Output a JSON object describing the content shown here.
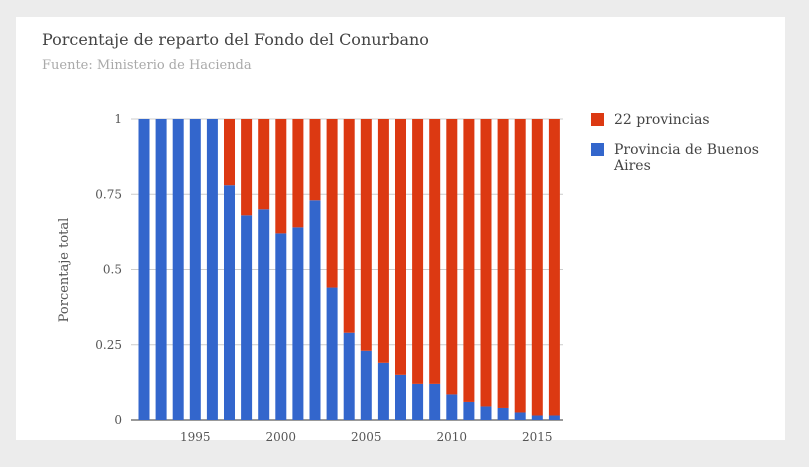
{
  "chart_data": {
    "type": "bar",
    "stacked": true,
    "title": "Porcentaje de reparto del Fondo del Conurbano",
    "subtitle": "Fuente: Ministerio de Hacienda",
    "xlabel": "",
    "ylabel": "Porcentaje total",
    "ylim": [
      0,
      1
    ],
    "yticks": [
      "0",
      "0.25",
      "0.5",
      "0.75",
      "1"
    ],
    "xticks": [
      "1995",
      "2000",
      "2005",
      "2010",
      "2015"
    ],
    "x": [
      1992,
      1993,
      1994,
      1995,
      1996,
      1997,
      1998,
      1999,
      2000,
      2001,
      2002,
      2003,
      2004,
      2005,
      2006,
      2007,
      2008,
      2009,
      2010,
      2011,
      2012,
      2013,
      2014,
      2015,
      2016
    ],
    "series": [
      {
        "name": "Provincia de Buenos Aires",
        "color": "#3366cc",
        "values": [
          1,
          1,
          1,
          1,
          1,
          0.78,
          0.68,
          0.7,
          0.62,
          0.64,
          0.73,
          0.44,
          0.29,
          0.23,
          0.19,
          0.15,
          0.12,
          0.12,
          0.085,
          0.06,
          0.045,
          0.04,
          0.025,
          0.015,
          0.015
        ]
      },
      {
        "name": "22 provincias",
        "color": "#dc3912",
        "values": [
          0,
          0,
          0,
          0,
          0,
          0.22,
          0.32,
          0.3,
          0.38,
          0.36,
          0.27,
          0.56,
          0.71,
          0.77,
          0.81,
          0.85,
          0.88,
          0.88,
          0.915,
          0.94,
          0.955,
          0.96,
          0.975,
          0.985,
          0.985
        ]
      }
    ],
    "legend": {
      "position": "right",
      "entries": [
        {
          "label": "22 provincias",
          "color": "#dc3912"
        },
        {
          "label_lines": [
            "Provincia de Buenos",
            "Aires"
          ],
          "color": "#3366cc"
        }
      ]
    },
    "grid": true
  }
}
